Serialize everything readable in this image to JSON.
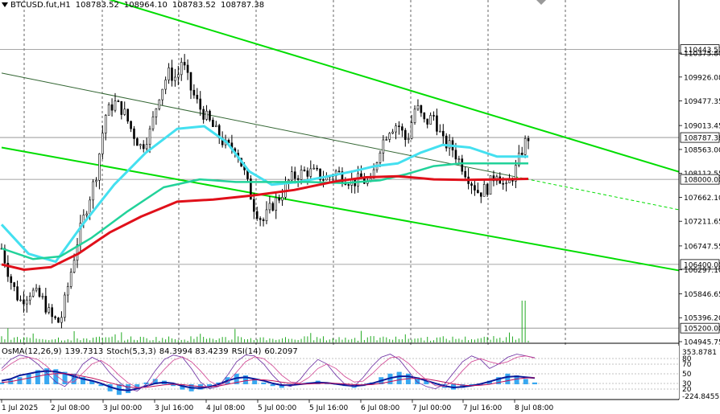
{
  "header": {
    "symbol": "BTCUSD.fut,H1",
    "open": "108783.52",
    "high": "108964.10",
    "low": "108783.52",
    "close": "108787.38"
  },
  "indicator_header": {
    "osma": "OsMA(12,26,9)",
    "osma_val": "139.7313",
    "stoch": "Stoch(5,3,3)",
    "stoch_val": "84.3994 83.4239",
    "rsi": "RSI(14)",
    "rsi_val": "60.2097"
  },
  "colors": {
    "candles": "#000000",
    "channel": "#00dd00",
    "ema_fast": "#44e0f0",
    "ema_mid": "#22d29a",
    "ema_slow": "#e0101a",
    "osma_hist": "#39a8f0",
    "macd_line": "#0a1a9a",
    "signal_line": "#c0105a",
    "volume": "#22aa22"
  },
  "chart_data": [
    {
      "type": "candlestick",
      "ylim": [
        104945.75,
        111300
      ],
      "price_ticks": [
        "110443.53",
        "110375.80",
        "109926.08",
        "109477.35",
        "109013.45",
        "108787.38",
        "108563.00",
        "108112.55",
        "108000.00",
        "107662.10",
        "107211.65",
        "106747.55",
        "106400.00",
        "106297.10",
        "105846.65",
        "105396.20",
        "105200.00",
        "104945.75"
      ],
      "highlighted_levels": [
        "110443.53",
        "108787.38",
        "108000.00",
        "106400.00",
        "105200.00"
      ],
      "x_labels": [
        "1 Jul 2025",
        "2 Jul 08:00",
        "3 Jul 00:00",
        "3 Jul 16:00",
        "4 Jul 08:00",
        "5 Jul 00:00",
        "5 Jul 16:00",
        "6 Jul 08:00",
        "7 Jul 00:00",
        "7 Jul 16:00",
        "8 Jul 08:00"
      ],
      "candle_count": 168,
      "close_path": [
        [
          0,
          106700
        ],
        [
          4,
          106100
        ],
        [
          8,
          105700
        ],
        [
          13,
          105900
        ],
        [
          18,
          105750
        ],
        [
          22,
          105400
        ],
        [
          26,
          105300
        ],
        [
          30,
          106100
        ],
        [
          34,
          106900
        ],
        [
          38,
          107500
        ],
        [
          42,
          108100
        ],
        [
          46,
          109200
        ],
        [
          50,
          109450
        ],
        [
          54,
          109300
        ],
        [
          58,
          108900
        ],
        [
          62,
          108600
        ],
        [
          66,
          108900
        ],
        [
          70,
          109600
        ],
        [
          74,
          110000
        ],
        [
          78,
          109900
        ],
        [
          80,
          110250
        ],
        [
          84,
          109700
        ],
        [
          88,
          109350
        ],
        [
          92,
          109100
        ],
        [
          96,
          108850
        ],
        [
          100,
          108600
        ],
        [
          104,
          108600
        ],
        [
          108,
          108100
        ],
        [
          112,
          107500
        ],
        [
          116,
          107200
        ],
        [
          120,
          107500
        ],
        [
          124,
          107700
        ],
        [
          128,
          108000
        ],
        [
          132,
          108100
        ],
        [
          136,
          108150
        ],
        [
          140,
          108100
        ],
        [
          144,
          108000
        ],
        [
          148,
          108150
        ],
        [
          152,
          108050
        ],
        [
          156,
          107950
        ],
        [
          160,
          108000
        ],
        [
          164,
          107900
        ],
        [
          168,
          108600
        ],
        [
          172,
          108950
        ],
        [
          176,
          109050
        ],
        [
          180,
          108700
        ],
        [
          184,
          109400
        ],
        [
          188,
          109050
        ],
        [
          192,
          109200
        ],
        [
          196,
          108700
        ],
        [
          200,
          108600
        ],
        [
          204,
          108300
        ],
        [
          208,
          108000
        ],
        [
          212,
          107750
        ],
        [
          216,
          107850
        ],
        [
          220,
          108150
        ],
        [
          224,
          107800
        ],
        [
          228,
          108150
        ],
        [
          232,
          108650
        ],
        [
          234,
          108790
        ]
      ],
      "volume_spike_index": 232,
      "series": [
        {
          "name": "EMA fast",
          "points": [
            [
              0,
              107150
            ],
            [
              12,
              106600
            ],
            [
              24,
              106450
            ],
            [
              36,
              107150
            ],
            [
              50,
              107900
            ],
            [
              64,
              108500
            ],
            [
              78,
              108950
            ],
            [
              90,
              109000
            ],
            [
              100,
              108700
            ],
            [
              110,
              108150
            ],
            [
              120,
              107900
            ],
            [
              132,
              107950
            ],
            [
              144,
              108050
            ],
            [
              156,
              108150
            ],
            [
              166,
              108250
            ],
            [
              176,
              108300
            ],
            [
              186,
              108500
            ],
            [
              196,
              108650
            ],
            [
              208,
              108600
            ],
            [
              220,
              108430
            ],
            [
              234,
              108430
            ]
          ]
        },
        {
          "name": "EMA mid",
          "points": [
            [
              0,
              106700
            ],
            [
              14,
              106500
            ],
            [
              26,
              106550
            ],
            [
              40,
              106900
            ],
            [
              56,
              107400
            ],
            [
              72,
              107850
            ],
            [
              88,
              108000
            ],
            [
              104,
              107950
            ],
            [
              120,
              107950
            ],
            [
              136,
              107950
            ],
            [
              152,
              107930
            ],
            [
              168,
              107980
            ],
            [
              180,
              108100
            ],
            [
              192,
              108250
            ],
            [
              204,
              108300
            ],
            [
              216,
              108300
            ],
            [
              234,
              108300
            ]
          ]
        },
        {
          "name": "EMA slow",
          "points": [
            [
              0,
              106400
            ],
            [
              10,
              106300
            ],
            [
              22,
              106350
            ],
            [
              34,
              106600
            ],
            [
              48,
              107000
            ],
            [
              62,
              107300
            ],
            [
              78,
              107580
            ],
            [
              94,
              107620
            ],
            [
              112,
              107700
            ],
            [
              130,
              107800
            ],
            [
              148,
              107960
            ],
            [
              162,
              108040
            ],
            [
              176,
              108060
            ],
            [
              192,
              108000
            ],
            [
              206,
              107990
            ],
            [
              234,
              108010
            ]
          ]
        }
      ],
      "channel": {
        "upper": [
          [
            0,
            112000
          ],
          [
            234,
            109000
          ]
        ],
        "middle": [
          [
            0,
            110000
          ],
          [
            234,
            108000
          ]
        ],
        "lower": [
          [
            0,
            108600
          ],
          [
            234,
            106800
          ]
        ]
      }
    },
    {
      "type": "oscillator",
      "scale_labels": [
        "353.8781",
        "80",
        "70",
        "50",
        "30",
        "20",
        "-224.8455"
      ],
      "osma_hist": [
        10,
        25,
        40,
        60,
        80,
        90,
        85,
        70,
        60,
        40,
        20,
        -10,
        -40,
        -60,
        -50,
        -20,
        10,
        30,
        20,
        -10,
        -30,
        -40,
        -30,
        -20,
        10,
        40,
        60,
        50,
        30,
        10,
        -10,
        -20,
        -10,
        0,
        10,
        20,
        10,
        0,
        -10,
        -20,
        -10,
        10,
        40,
        60,
        70,
        60,
        40,
        20,
        0,
        -20,
        -30,
        -20,
        -10,
        0,
        20,
        40,
        60,
        50,
        30,
        10
      ],
      "macd_line": [
        0.2,
        0.3,
        0.5,
        0.6,
        0.7,
        0.75,
        0.72,
        0.6,
        0.45,
        0.3,
        0.2,
        0.05,
        -0.15,
        -0.3,
        -0.35,
        -0.25,
        -0.1,
        0.05,
        0.1,
        0.05,
        -0.1,
        -0.2,
        -0.22,
        -0.15,
        0.0,
        0.2,
        0.35,
        0.4,
        0.3,
        0.2,
        0.05,
        -0.05,
        -0.05,
        0.0,
        0.05,
        0.1,
        0.08,
        0.02,
        -0.05,
        -0.1,
        -0.05,
        0.05,
        0.2,
        0.35,
        0.45,
        0.45,
        0.35,
        0.2,
        0.05,
        -0.1,
        -0.18,
        -0.15,
        -0.08,
        0.02,
        0.15,
        0.3,
        0.42,
        0.45,
        0.4,
        0.35
      ],
      "signal_line": [
        0.1,
        0.15,
        0.25,
        0.35,
        0.45,
        0.55,
        0.6,
        0.6,
        0.55,
        0.45,
        0.35,
        0.22,
        0.08,
        -0.05,
        -0.15,
        -0.2,
        -0.17,
        -0.1,
        -0.03,
        0.0,
        -0.02,
        -0.08,
        -0.13,
        -0.15,
        -0.1,
        0.0,
        0.1,
        0.2,
        0.25,
        0.25,
        0.2,
        0.12,
        0.05,
        0.02,
        0.02,
        0.04,
        0.06,
        0.05,
        0.02,
        -0.02,
        -0.04,
        -0.02,
        0.05,
        0.15,
        0.25,
        0.32,
        0.34,
        0.3,
        0.22,
        0.12,
        0.02,
        -0.05,
        -0.08,
        -0.06,
        0.0,
        0.1,
        0.2,
        0.3,
        0.35,
        0.37
      ],
      "stoch_k": [
        60,
        80,
        90,
        85,
        70,
        50,
        30,
        20,
        40,
        70,
        85,
        75,
        50,
        30,
        15,
        10,
        25,
        55,
        80,
        90,
        85,
        60,
        30,
        15,
        20,
        45,
        75,
        90,
        88,
        70,
        45,
        25,
        20,
        35,
        60,
        80,
        70,
        45,
        25,
        20,
        40,
        65,
        85,
        92,
        80,
        55,
        30,
        20,
        15,
        25,
        50,
        75,
        88,
        80,
        60,
        70,
        85,
        92,
        88,
        84
      ],
      "stoch_d": [
        55,
        70,
        82,
        85,
        80,
        65,
        45,
        30,
        30,
        50,
        70,
        78,
        65,
        45,
        28,
        18,
        18,
        35,
        58,
        78,
        86,
        75,
        55,
        32,
        22,
        30,
        52,
        75,
        86,
        82,
        66,
        45,
        30,
        28,
        40,
        60,
        70,
        60,
        42,
        30,
        32,
        48,
        68,
        84,
        86,
        72,
        52,
        35,
        22,
        20,
        32,
        55,
        75,
        82,
        75,
        70,
        75,
        85,
        88,
        83
      ]
    }
  ]
}
